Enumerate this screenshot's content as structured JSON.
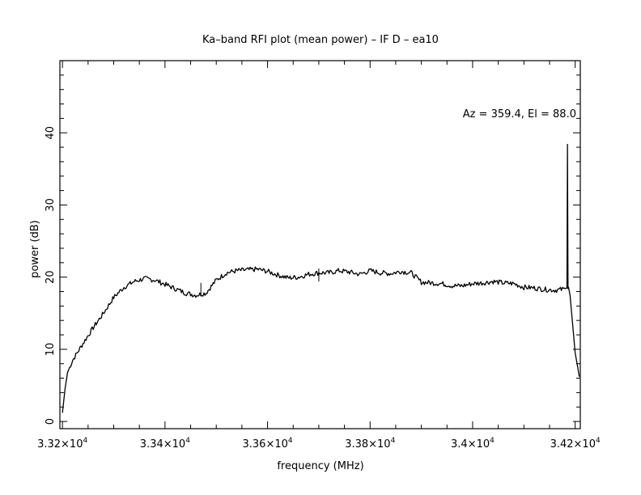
{
  "chart_data": {
    "type": "line",
    "title": "Ka–band RFI plot (mean power) – IF D – ea10",
    "xlabel": "frequency (MHz)",
    "ylabel": "power (dB)",
    "annotation": "Az = 359.4, El = 88.0",
    "xlim": [
      33195,
      34210
    ],
    "ylim": [
      -1,
      50
    ],
    "grid": false,
    "x_ticks": [
      {
        "value": 33200,
        "mantissa": "3.32",
        "exp": "4"
      },
      {
        "value": 33400,
        "mantissa": "3.34",
        "exp": "4"
      },
      {
        "value": 33600,
        "mantissa": "3.36",
        "exp": "4"
      },
      {
        "value": 33800,
        "mantissa": "3.38",
        "exp": "4"
      },
      {
        "value": 34000,
        "mantissa": "3.4",
        "exp": "4"
      },
      {
        "value": 34200,
        "mantissa": "3.42",
        "exp": "4"
      }
    ],
    "y_ticks": [
      {
        "value": 0,
        "label": "0"
      },
      {
        "value": 10,
        "label": "10"
      },
      {
        "value": 20,
        "label": "20"
      },
      {
        "value": 30,
        "label": "30"
      },
      {
        "value": 40,
        "label": "40"
      }
    ],
    "series": [
      {
        "color": "#000000",
        "x": [
          33200,
          33205,
          33210,
          33220,
          33240,
          33260,
          33280,
          33300,
          33320,
          33340,
          33360,
          33380,
          33400,
          33420,
          33440,
          33460,
          33480,
          33500,
          33520,
          33540,
          33560,
          33580,
          33600,
          33620,
          33640,
          33660,
          33680,
          33700,
          33720,
          33740,
          33760,
          33780,
          33800,
          33820,
          33840,
          33860,
          33880,
          33900,
          33920,
          33940,
          33960,
          33980,
          34000,
          34020,
          34040,
          34060,
          34080,
          34100,
          34120,
          34140,
          34160,
          34175,
          34180,
          34184,
          34185,
          34186,
          34187,
          34190,
          34195,
          34200,
          34205,
          34208
        ],
        "y": [
          1.2,
          4.5,
          6.8,
          8.5,
          10.8,
          13.0,
          15.0,
          17.2,
          18.6,
          19.4,
          19.8,
          19.6,
          19.0,
          18.4,
          17.8,
          17.5,
          17.8,
          19.6,
          20.6,
          20.9,
          21.0,
          21.1,
          20.8,
          20.3,
          19.9,
          20.0,
          20.4,
          20.6,
          20.6,
          20.9,
          20.7,
          20.4,
          20.9,
          20.6,
          20.5,
          20.8,
          20.6,
          19.3,
          19.2,
          19.1,
          18.8,
          18.8,
          19.1,
          19.2,
          19.4,
          19.2,
          19.1,
          18.6,
          18.5,
          18.3,
          18.2,
          18.3,
          18.4,
          18.5,
          38.4,
          18.4,
          18.6,
          17.5,
          13.5,
          9.5,
          7.5,
          6.2
        ]
      }
    ],
    "spikes": [
      {
        "x": 33470,
        "y": 19.2
      },
      {
        "x": 33700,
        "y": 21.2
      }
    ]
  }
}
